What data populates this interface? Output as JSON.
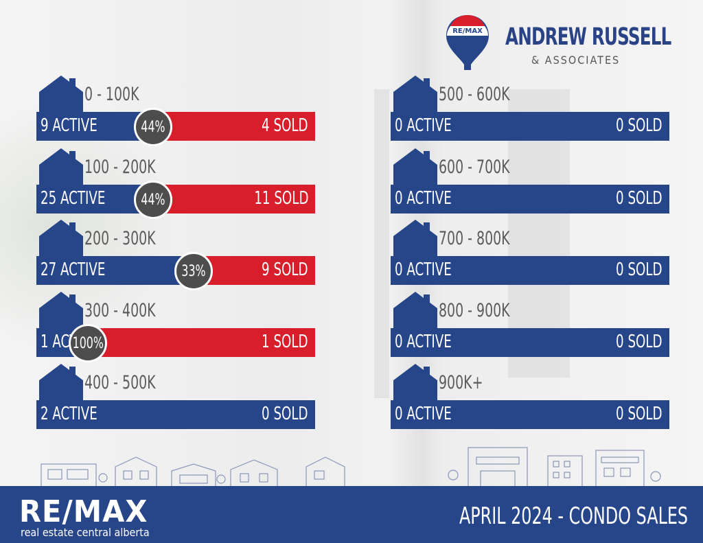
{
  "brand": {
    "balloon_text": "RE/MAX",
    "name": "ANDREW RUSSELL",
    "sub": "& ASSOCIATES",
    "color_blue": "#274589",
    "color_red": "#d91e2b"
  },
  "footer": {
    "logo": "RE/MAX",
    "logo_sub": "real estate central alberta",
    "title": "APRIL 2024 -  CONDO SALES"
  },
  "chart_data": {
    "type": "bar",
    "title": "APRIL 2024 -  CONDO SALES",
    "categories": [
      "0 - 100K",
      "100 - 200K",
      "200 - 300K",
      "300 - 400K",
      "400 - 500K",
      "500 - 600K",
      "600 - 700K",
      "700 - 800K",
      "800 - 900K",
      "900K+"
    ],
    "series": [
      {
        "values": [
          9,
          25,
          27,
          1,
          2,
          0,
          0,
          0,
          0,
          0
        ]
      },
      {
        "values": [
          4,
          11,
          9,
          1,
          0,
          0,
          0,
          0,
          0,
          0
        ]
      }
    ],
    "active_labels": [
      "9 ACTIVE",
      "25 ACTIVE",
      "27 ACTIVE",
      "1 ACTIVE",
      "2 ACTIVE",
      "0 ACTIVE",
      "0 ACTIVE",
      "0 ACTIVE",
      "0 ACTIVE",
      "0 ACTIVE"
    ],
    "sold_labels": [
      "4 SOLD",
      "11 SOLD",
      "9 SOLD",
      "1 SOLD",
      "0 SOLD",
      "0 SOLD",
      "0 SOLD",
      "0 SOLD",
      "0 SOLD",
      "0 SOLD"
    ],
    "percent_labels": [
      "44%",
      "44%",
      "33%",
      "100%",
      "",
      "",
      "",
      "",
      "",
      ""
    ],
    "sold_fraction": [
      0.44,
      0.44,
      0.33,
      1.0,
      0,
      0,
      0,
      0,
      0,
      0
    ],
    "colors": {
      "active": "#274589",
      "sold": "#d91e2b",
      "badge": "#4d4d4d"
    }
  }
}
